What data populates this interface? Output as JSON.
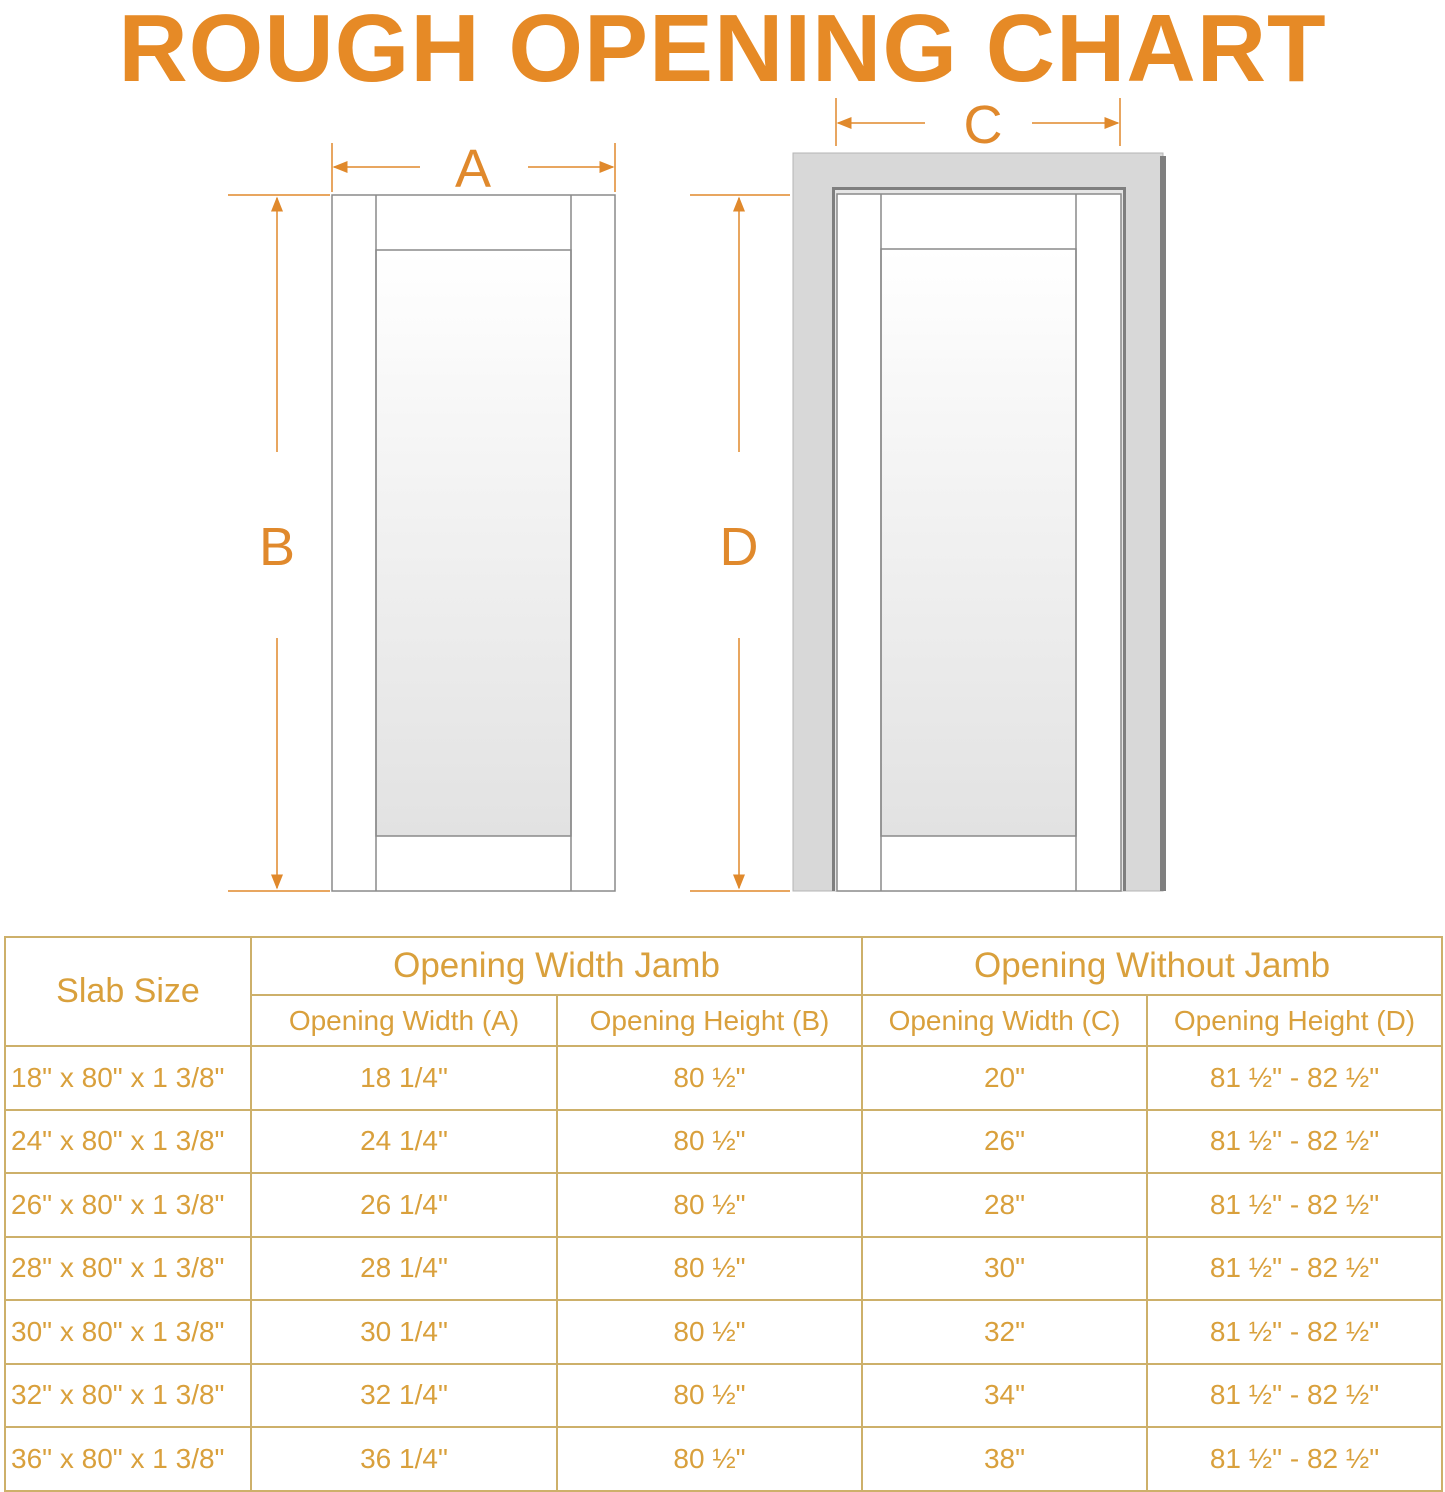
{
  "title": "ROUGH OPENING CHART",
  "diagram": {
    "labels": {
      "a": "A",
      "b": "B",
      "c": "C",
      "d": "D"
    },
    "colors": {
      "accent": "#E0892C",
      "frame": "#D8D8D8",
      "door_line": "#8A8A8A"
    }
  },
  "table": {
    "headers": {
      "slab_size": "Slab Size",
      "group_with_jamb": "Opening Width Jamb",
      "group_without_jamb": "Opening Without Jamb",
      "columns": [
        "Opening Width (A)",
        "Opening Height (B)",
        "Opening Width (C)",
        "Opening Height (D)"
      ]
    },
    "rows": [
      [
        "18\" x 80\" x 1 3/8\"",
        "18 1/4\"",
        "80 ½\"",
        "20\"",
        "81 ½\" - 82 ½\""
      ],
      [
        "24\" x 80\" x 1 3/8\"",
        "24 1/4\"",
        "80 ½\"",
        "26\"",
        "81 ½\" - 82 ½\""
      ],
      [
        "26\" x 80\" x 1 3/8\"",
        "26 1/4\"",
        "80 ½\"",
        "28\"",
        "81 ½\" - 82 ½\""
      ],
      [
        "28\" x 80\" x 1 3/8\"",
        "28 1/4\"",
        "80 ½\"",
        "30\"",
        "81 ½\" - 82 ½\""
      ],
      [
        "30\" x 80\" x 1 3/8\"",
        "30 1/4\"",
        "80 ½\"",
        "32\"",
        "81 ½\" - 82 ½\""
      ],
      [
        "32\" x 80\" x 1 3/8\"",
        "32 1/4\"",
        "80 ½\"",
        "34\"",
        "81 ½\" - 82 ½\""
      ],
      [
        "36\" x 80\" x 1 3/8\"",
        "36 1/4\"",
        "80 ½\"",
        "38\"",
        "81 ½\" - 82 ½\""
      ]
    ],
    "colors": {
      "text": "#D9A03C",
      "border": "#CDB06A"
    }
  }
}
